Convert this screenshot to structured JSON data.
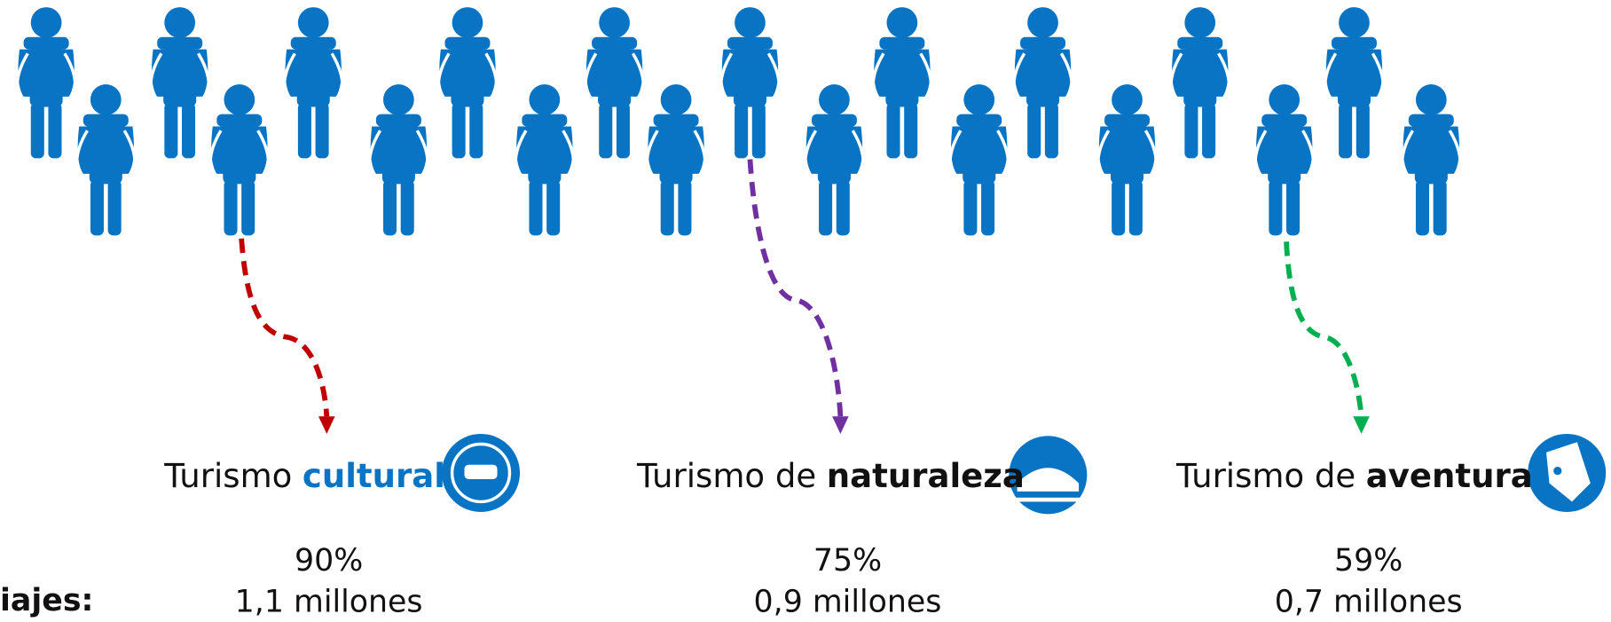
{
  "row_label": "iajes:",
  "groups": [
    {
      "prefix": "Turismo",
      "highlight": "cultural",
      "percent": "90%",
      "count": "1,1 millones"
    },
    {
      "prefix": "Turismo de",
      "highlight": "naturaleza",
      "percent": "75%",
      "count": "0,9 millones"
    },
    {
      "prefix": "Turismo de",
      "highlight": "aventura",
      "percent": "59%",
      "count": "0,7 millones"
    }
  ]
}
